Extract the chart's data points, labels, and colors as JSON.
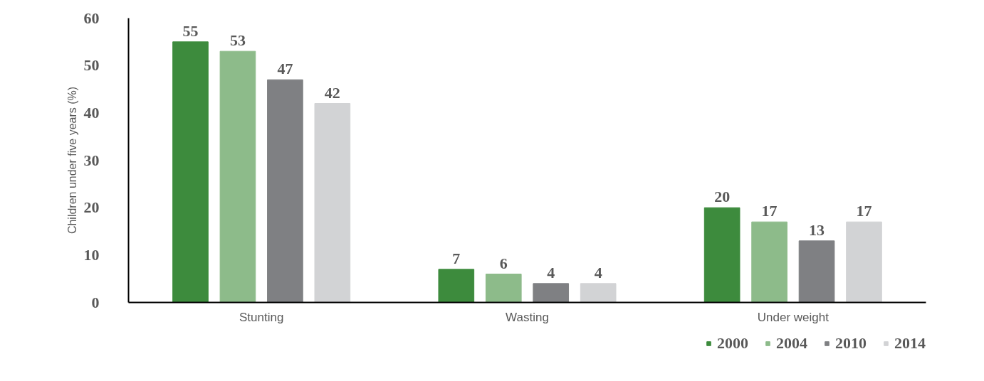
{
  "chart_data": {
    "type": "bar",
    "ylabel": "Children under five years (%)",
    "categories": [
      "Stunting",
      "Wasting",
      "Under weight"
    ],
    "series": [
      {
        "name": "2000",
        "color": "#3d8b3d",
        "values": [
          55,
          7,
          20
        ]
      },
      {
        "name": "2004",
        "color": "#8dbb8a",
        "values": [
          53,
          6,
          17
        ]
      },
      {
        "name": "2010",
        "color": "#7f8083",
        "values": [
          47,
          4,
          13
        ]
      },
      {
        "name": "2014",
        "color": "#d2d3d5",
        "values": [
          42,
          4,
          17
        ]
      }
    ],
    "ylim": [
      0,
      60
    ],
    "yticks": [
      0,
      10,
      20,
      30,
      40,
      50,
      60
    ],
    "data_labels": true,
    "grid": false,
    "legend": "bottom right"
  }
}
